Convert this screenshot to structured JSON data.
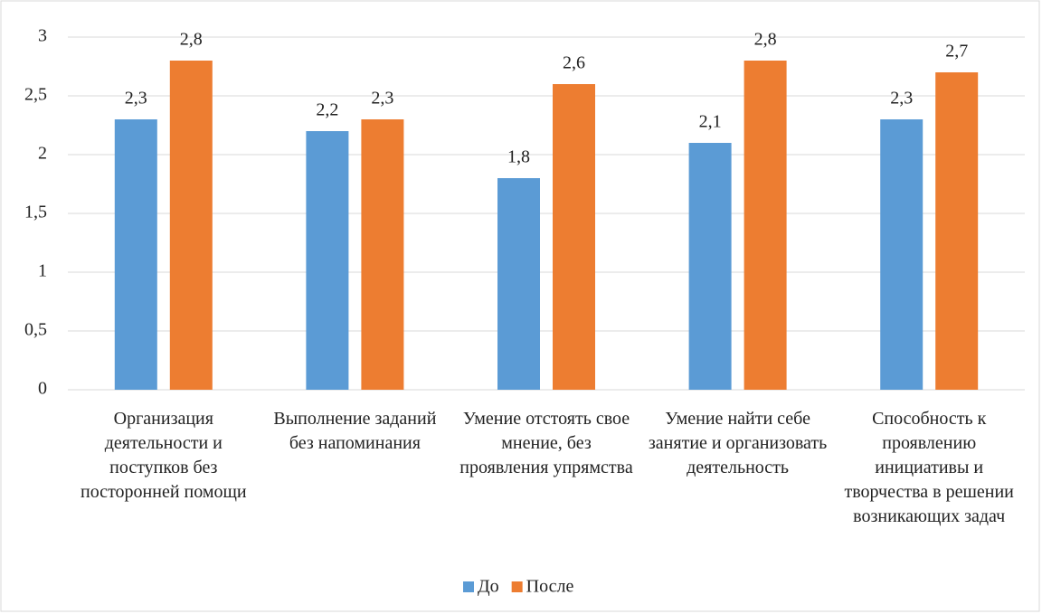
{
  "chart_data": {
    "type": "bar",
    "categories": [
      "Организация деятельности и поступков без посторонней помощи",
      "Выполнение заданий без напоминания",
      "Умение отстоять свое мнение, без проявления упрямства",
      "Умение найти себе занятие и организовать деятельность",
      "Способность к проявлению инициативы и творчества в решении возникающих задач"
    ],
    "series": [
      {
        "name": "До",
        "color": "#5b9bd5",
        "values": [
          2.3,
          2.2,
          1.8,
          2.1,
          2.3
        ],
        "value_labels": [
          "2,3",
          "2,2",
          "1,8",
          "2,1",
          "2,3"
        ]
      },
      {
        "name": "После",
        "color": "#ed7d31",
        "values": [
          2.8,
          2.3,
          2.6,
          2.8,
          2.7
        ],
        "value_labels": [
          "2,8",
          "2,3",
          "2,6",
          "2,8",
          "2,7"
        ]
      }
    ],
    "ylim": [
      0,
      3
    ],
    "yticks": [
      0,
      {
        "value": 0.5,
        "label": "0,5"
      },
      1,
      {
        "value": 1.5,
        "label": "1,5"
      },
      2,
      {
        "value": 2.5,
        "label": "2,5"
      },
      3
    ],
    "grid": true,
    "legend": "bottom"
  }
}
